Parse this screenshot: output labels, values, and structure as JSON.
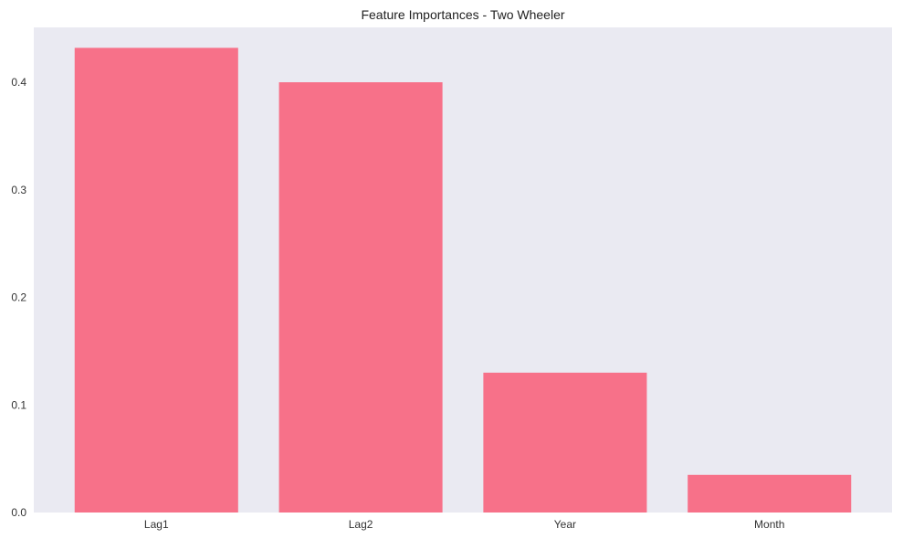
{
  "chart_data": {
    "type": "bar",
    "title": "Feature Importances - Two Wheeler",
    "xlabel": "",
    "ylabel": "",
    "categories": [
      "Lag1",
      "Lag2",
      "Year",
      "Month"
    ],
    "values": [
      0.432,
      0.4,
      0.13,
      0.035
    ],
    "ylim": [
      0,
      0.451
    ],
    "yticks": [
      0.0,
      0.1,
      0.2,
      0.3,
      0.4
    ],
    "ytick_labels": [
      "0.0",
      "0.1",
      "0.2",
      "0.3",
      "0.4"
    ],
    "grid": false,
    "legend": false,
    "colors": {
      "bar": "#f77189",
      "plot_background": "#eaeaf2",
      "page_background": "#ffffff",
      "text": "#222222"
    }
  }
}
